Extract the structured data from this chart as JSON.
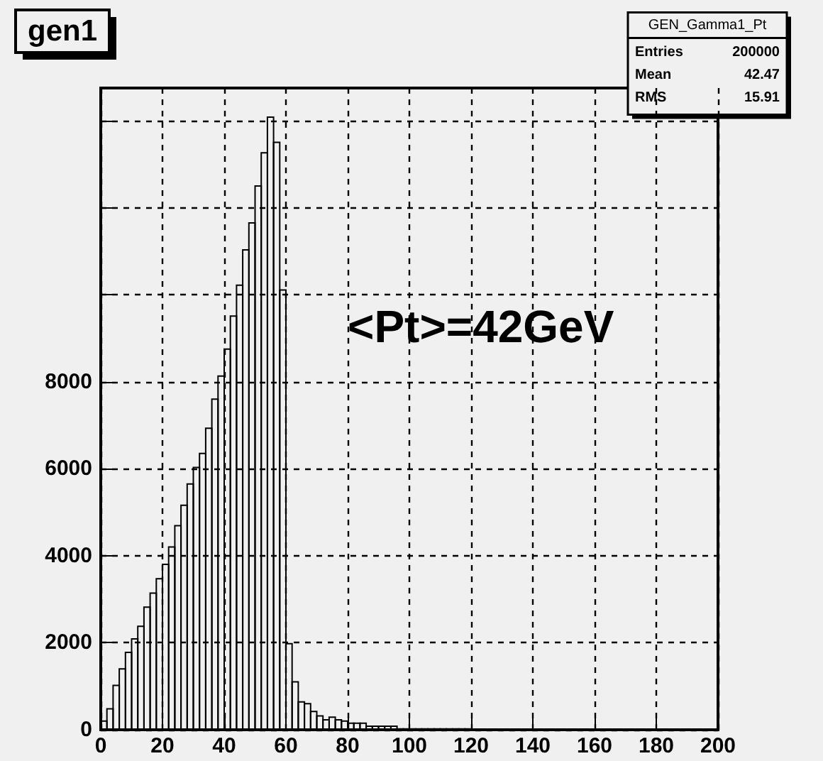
{
  "chart_data": {
    "type": "histogram",
    "title": "gen1",
    "bins": [
      0,
      2,
      4,
      6,
      8,
      10,
      12,
      14,
      16,
      18,
      20,
      22,
      24,
      26,
      28,
      30,
      32,
      34,
      36,
      38,
      40,
      42,
      44,
      46,
      48,
      50,
      52,
      54,
      56,
      58,
      60,
      62,
      64,
      66,
      68,
      70,
      72,
      74,
      76,
      78,
      80,
      82,
      84,
      86,
      88,
      90,
      92,
      94,
      96,
      98,
      100,
      102,
      104,
      106,
      108,
      110,
      112,
      114,
      116,
      118,
      120,
      122,
      124,
      126,
      128,
      130,
      132,
      134,
      136,
      138,
      140,
      142,
      144,
      146,
      148,
      150,
      152,
      154,
      156,
      158,
      160,
      162,
      164,
      166,
      168,
      170,
      172,
      174,
      176,
      178,
      180,
      182,
      184,
      186,
      188,
      190,
      192,
      194,
      196,
      198,
      200
    ],
    "values": [
      200,
      480,
      1020,
      1400,
      1780,
      2090,
      2380,
      2820,
      3140,
      3470,
      3800,
      4200,
      4690,
      5160,
      5650,
      6030,
      6350,
      6930,
      7600,
      8130,
      8750,
      9510,
      10220,
      11030,
      11650,
      12500,
      13260,
      14080,
      13500,
      10110,
      1980,
      1100,
      640,
      600,
      420,
      320,
      230,
      290,
      230,
      200,
      150,
      150,
      150,
      80,
      80,
      80,
      80,
      80,
      20,
      20,
      20,
      20,
      20,
      20,
      20,
      20,
      20,
      20,
      20,
      20,
      0,
      0,
      0,
      0,
      0,
      0,
      0,
      0,
      0,
      0,
      0,
      0,
      0,
      0,
      0,
      0,
      0,
      0,
      0,
      0,
      0,
      0,
      0,
      0,
      0,
      0,
      0,
      0,
      0,
      0,
      0,
      0,
      0,
      0,
      0,
      0,
      0,
      0,
      0,
      0
    ],
    "color": "#000000",
    "xlim": [
      0,
      200
    ],
    "xticks": [
      0,
      20,
      40,
      60,
      80,
      100,
      120,
      140,
      160,
      180,
      200
    ],
    "ylim": [
      0,
      14750
    ],
    "yticks": [
      0,
      2000,
      4000,
      6000,
      8000,
      {
        "value": 10000,
        "label": null
      },
      {
        "value": 12000,
        "label": null
      },
      {
        "value": 14000,
        "label": null
      }
    ],
    "grid": true,
    "annotations": [
      "GEN_Gamma1_Pt",
      "Entries 200000",
      "Mean 42.47",
      "RMS 15.91",
      "<Pt>=42GeV"
    ]
  }
}
